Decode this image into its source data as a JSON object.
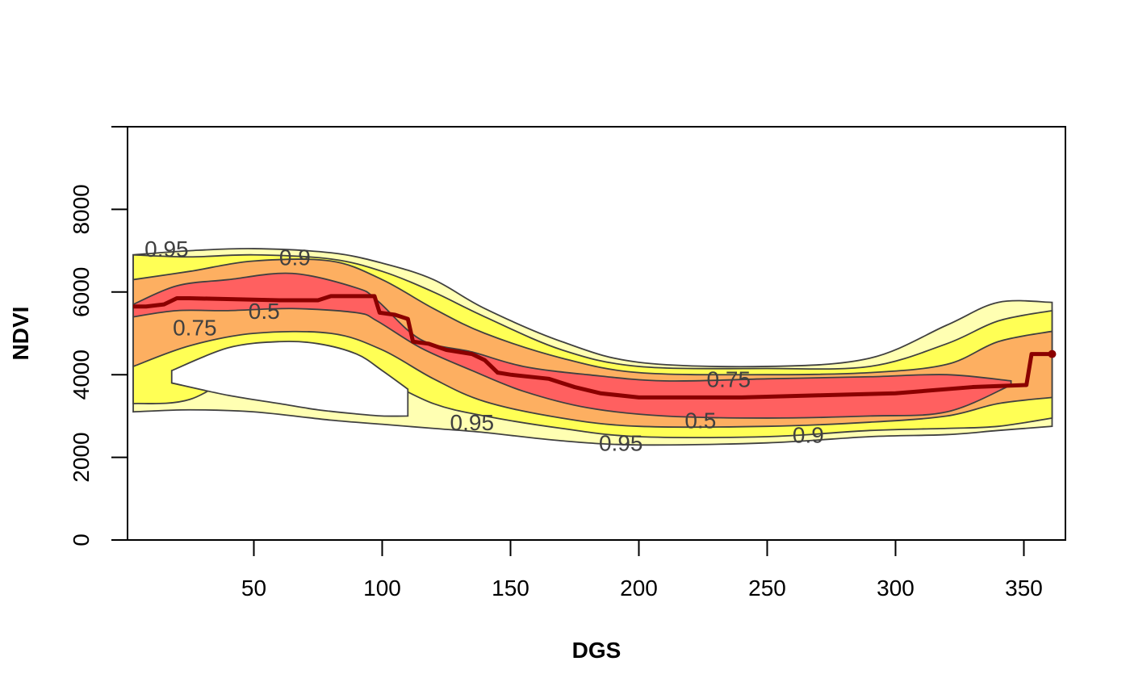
{
  "chart_data": {
    "type": "area",
    "title": "",
    "xlabel": "DGS",
    "ylabel": "NDVI",
    "xlim": [
      0,
      365
    ],
    "ylim": [
      0,
      10000
    ],
    "xticks": [
      50,
      100,
      150,
      200,
      250,
      300,
      350
    ],
    "yticks": [
      0,
      2000,
      4000,
      6000,
      8000
    ],
    "grid": false,
    "colors": {
      "band_95": "#FFFFB2",
      "band_90": "#FFFF55",
      "band_75": "#FDAF61",
      "band_50": "#FF6060",
      "contour_line": "#404040",
      "median_line": "#8B0000"
    },
    "bands": [
      {
        "name": "0.95",
        "x": [
          3,
          25,
          50,
          80,
          100,
          120,
          140,
          170,
          200,
          250,
          290,
          320,
          340,
          361
        ],
        "upper": [
          6900,
          7000,
          7050,
          6950,
          6700,
          6300,
          5600,
          4800,
          4300,
          4200,
          4400,
          5200,
          5750,
          5750
        ],
        "lower": [
          3100,
          3150,
          3100,
          2900,
          2800,
          2700,
          2600,
          2400,
          2300,
          2350,
          2500,
          2550,
          2650,
          2750
        ]
      },
      {
        "name": "0.9",
        "x": [
          3,
          25,
          50,
          80,
          100,
          120,
          140,
          170,
          200,
          250,
          290,
          320,
          340,
          361
        ],
        "upper": [
          6900,
          6850,
          6900,
          6800,
          6500,
          6000,
          5400,
          4600,
          4200,
          4150,
          4200,
          4750,
          5300,
          5550
        ],
        "lower": [
          3300,
          3400,
          4200,
          4500,
          3900,
          3300,
          3000,
          2700,
          2500,
          2500,
          2650,
          2700,
          2750,
          2950
        ]
      },
      {
        "name": "0.75",
        "x": [
          3,
          25,
          50,
          80,
          100,
          120,
          140,
          170,
          200,
          250,
          290,
          320,
          340,
          361
        ],
        "upper": [
          6300,
          6500,
          6750,
          6750,
          6300,
          5600,
          5000,
          4400,
          4050,
          4000,
          4050,
          4250,
          4800,
          5050
        ],
        "lower": [
          4200,
          4700,
          5000,
          5000,
          4600,
          3900,
          3350,
          2950,
          2750,
          2750,
          2850,
          3000,
          3300,
          3450
        ]
      },
      {
        "name": "0.5",
        "x": [
          3,
          20,
          40,
          65,
          90,
          98,
          115,
          135,
          155,
          180,
          210,
          250,
          290,
          320,
          345
        ],
        "upper": [
          5700,
          6150,
          6300,
          6450,
          6100,
          5800,
          4850,
          4550,
          4200,
          4000,
          3850,
          3900,
          3950,
          4000,
          3850
        ],
        "lower": [
          5400,
          5550,
          5550,
          5600,
          5500,
          5300,
          4650,
          4100,
          3600,
          3200,
          3000,
          2950,
          3000,
          3100,
          3750
        ]
      }
    ],
    "inner_hole": {
      "x": [
        18,
        40,
        60,
        75,
        90,
        100,
        110
      ],
      "upper": [
        4100,
        4650,
        4800,
        4750,
        4500,
        4100,
        3650
      ],
      "lower": [
        3800,
        3500,
        3300,
        3150,
        3050,
        3000,
        3000
      ]
    },
    "median_line": {
      "x": [
        3,
        8,
        15,
        20,
        25,
        60,
        75,
        80,
        97,
        99,
        105,
        110,
        112,
        118,
        125,
        135,
        140,
        145,
        150,
        165,
        175,
        185,
        200,
        215,
        240,
        270,
        300,
        330,
        351,
        353,
        361
      ],
      "y": [
        5650,
        5650,
        5700,
        5850,
        5850,
        5800,
        5800,
        5900,
        5900,
        5500,
        5450,
        5350,
        4800,
        4750,
        4600,
        4500,
        4350,
        4050,
        4000,
        3900,
        3700,
        3550,
        3450,
        3450,
        3450,
        3500,
        3550,
        3700,
        3750,
        4500,
        4500
      ]
    },
    "contour_labels": [
      {
        "text": "0.95",
        "x": 16,
        "y": 7050
      },
      {
        "text": "0.9",
        "x": 66,
        "y": 6850
      },
      {
        "text": "0.75",
        "x": 27,
        "y": 5150
      },
      {
        "text": "0.5",
        "x": 54,
        "y": 5550
      },
      {
        "text": "0.95",
        "x": 135,
        "y": 2850
      },
      {
        "text": "0.95",
        "x": 193,
        "y": 2350
      },
      {
        "text": "0.75",
        "x": 235,
        "y": 3900
      },
      {
        "text": "0.5",
        "x": 224,
        "y": 2900
      },
      {
        "text": "0.9",
        "x": 266,
        "y": 2550
      }
    ]
  }
}
